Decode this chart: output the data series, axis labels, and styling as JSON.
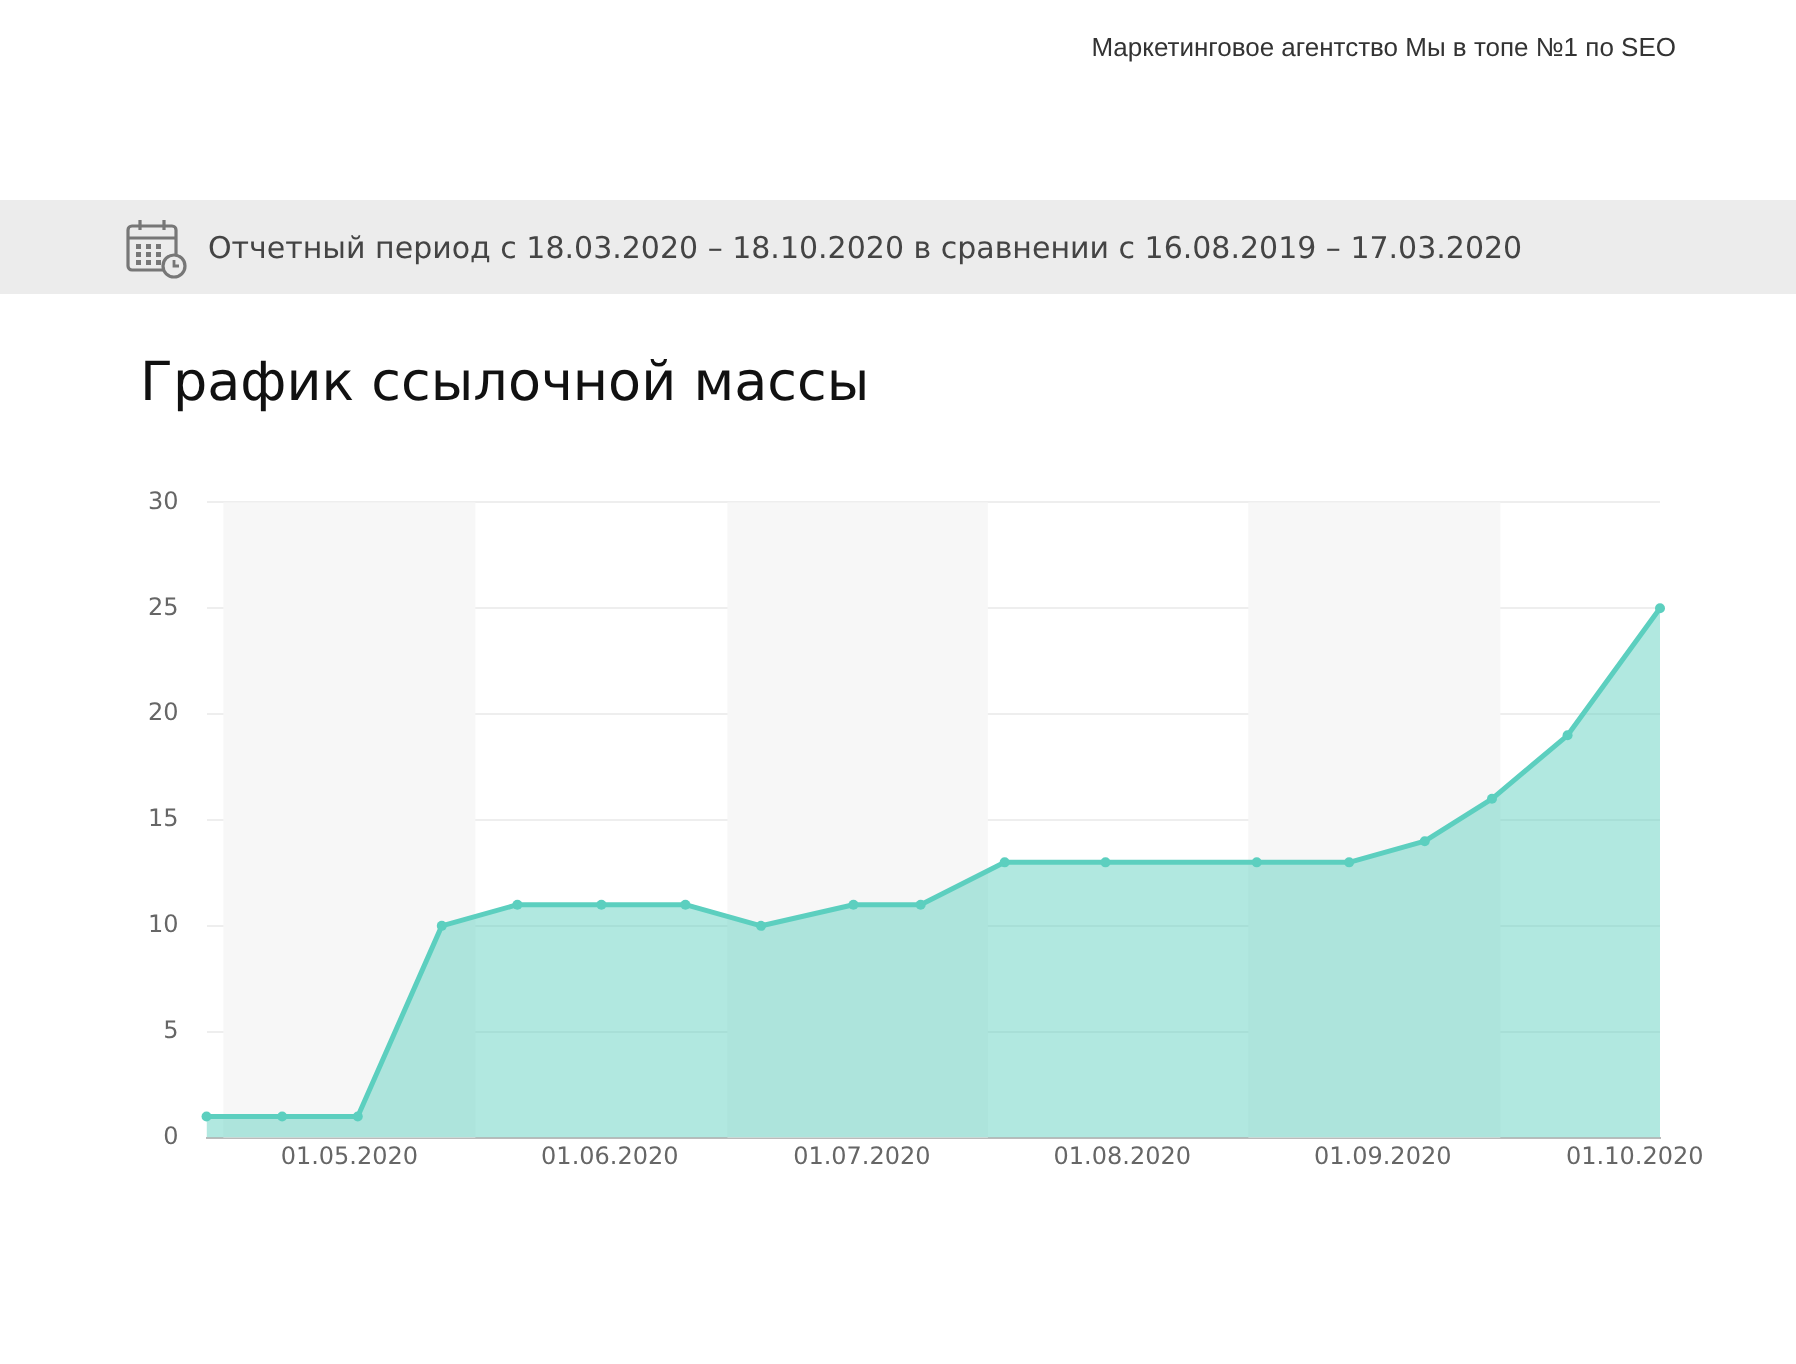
{
  "chart_data": {
    "type": "area",
    "title": "График ссылочной массы",
    "annotations": [
      "Маркетинговое агентство Мы в топе №1 по SEO",
      "Отчетный период с 18.03.2020 – 18.10.2020 в сравнении с 16.08.2019 – 17.03.2020"
    ],
    "x": [
      "2020-04-14",
      "2020-04-23",
      "2020-05-02",
      "2020-05-12",
      "2020-05-21",
      "2020-05-31",
      "2020-06-10",
      "2020-06-19",
      "2020-06-30",
      "2020-07-08",
      "2020-07-18",
      "2020-07-30",
      "2020-08-17",
      "2020-08-28",
      "2020-09-06",
      "2020-09-14",
      "2020-09-23",
      "2020-10-04"
    ],
    "series": [
      {
        "color": "#5ccfbf",
        "values": [
          1,
          1,
          1,
          10,
          11,
          11,
          11,
          10,
          11,
          11,
          13,
          13,
          13,
          13,
          14,
          16,
          19,
          25
        ]
      }
    ],
    "xlim": [
      "2020-04-14",
      "2020-10-04"
    ],
    "xticks": [
      {
        "value": "2020-05-01",
        "label": "01.05.2020"
      },
      {
        "value": "2020-06-01",
        "label": "01.06.2020"
      },
      {
        "value": "2020-07-01",
        "label": "01.07.2020"
      },
      {
        "value": "2020-08-01",
        "label": "01.08.2020"
      },
      {
        "value": "2020-09-01",
        "label": "01.09.2020"
      },
      {
        "value": "2020-10-01",
        "label": "01.10.2020"
      }
    ],
    "ylim": [
      0,
      30
    ],
    "yticks": [
      0,
      5,
      10,
      15,
      20,
      25,
      30
    ],
    "bands": [
      {
        "axis": "x",
        "from": "2020-04-16",
        "to": "2020-05-16",
        "color": "#f7f7f7"
      },
      {
        "axis": "x",
        "from": "2020-06-15",
        "to": "2020-07-16",
        "color": "#f7f7f7"
      },
      {
        "axis": "x",
        "from": "2020-08-16",
        "to": "2020-09-15",
        "color": "#f7f7f7"
      }
    ],
    "grid": "y",
    "marker": "circle",
    "line_style": "solid"
  }
}
